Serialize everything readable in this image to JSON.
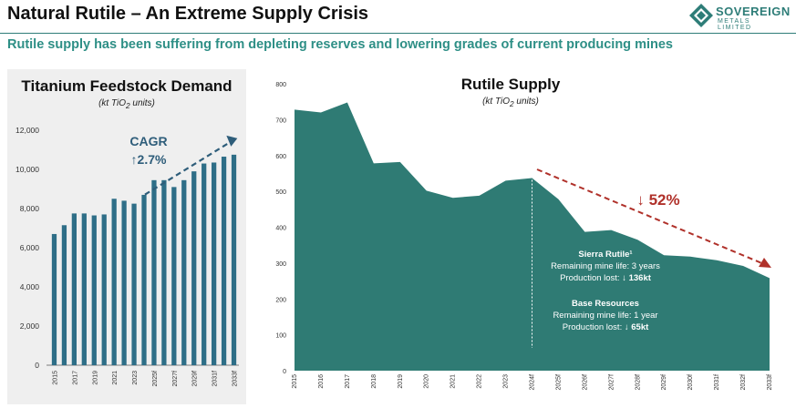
{
  "header": {
    "title": "Natural Rutile – An Extreme Supply Crisis",
    "subtitle": "Rutile supply has been suffering from depleting reserves and lowering grades of current producing mines",
    "logo_name": "SOVEREIGN",
    "logo_tagline": "METALS LIMITED",
    "accent_color": "#2e7d78"
  },
  "chart_data": [
    {
      "type": "bar",
      "title": "Titanium Feedstock Demand",
      "subtitle": "(kt TiO2 units)",
      "color": "#2e6e87",
      "ylim": [
        0,
        12000
      ],
      "yticks": [
        "0",
        "2,000",
        "4,000",
        "6,000",
        "8,000",
        "10,000",
        "12,000"
      ],
      "x_tick_labels": [
        "2015",
        "2017",
        "2019",
        "2021",
        "2023",
        "2025f",
        "2027f",
        "2029f",
        "2031f",
        "2033f"
      ],
      "categories": [
        "2015",
        "2016",
        "2017",
        "2018",
        "2019",
        "2020",
        "2021",
        "2022",
        "2023",
        "2024f",
        "2025f",
        "2026f",
        "2027f",
        "2028f",
        "2029f",
        "2030f",
        "2031f",
        "2032f",
        "2033f"
      ],
      "values": [
        6700,
        7150,
        7750,
        7750,
        7650,
        7700,
        8500,
        8400,
        8250,
        8700,
        9450,
        9450,
        9100,
        9450,
        9900,
        10300,
        10350,
        10650,
        10750
      ],
      "annotation": {
        "label": "CAGR",
        "value": "↑2.7%"
      }
    },
    {
      "type": "area",
      "title": "Rutile Supply",
      "subtitle": "(kt TiO2 units)",
      "color": "#2f7b74",
      "ylim": [
        0,
        800
      ],
      "yticks": [
        "0",
        "100",
        "200",
        "300",
        "400",
        "500",
        "600",
        "700",
        "800"
      ],
      "categories": [
        "2015",
        "2016",
        "2017",
        "2018",
        "2019",
        "2020",
        "2021",
        "2022",
        "2023",
        "2024f",
        "2025f",
        "2026f",
        "2027f",
        "2028f",
        "2029f",
        "2030f",
        "2031f",
        "2032f",
        "2033f"
      ],
      "values": [
        728,
        720,
        748,
        578,
        582,
        502,
        482,
        488,
        530,
        537,
        478,
        387,
        392,
        365,
        322,
        318,
        308,
        292,
        258
      ],
      "decline_label": "↓ 52%",
      "notes": [
        {
          "title": "Sierra Rutile¹",
          "line1": "Remaining mine life: 3 years",
          "line2_prefix": "Production lost: ",
          "line2_value": "↓ 136kt"
        },
        {
          "title": "Base Resources",
          "line1": "Remaining mine life: 1 year",
          "line2_prefix": "Production lost: ",
          "line2_value": "↓ 65kt"
        }
      ]
    }
  ]
}
